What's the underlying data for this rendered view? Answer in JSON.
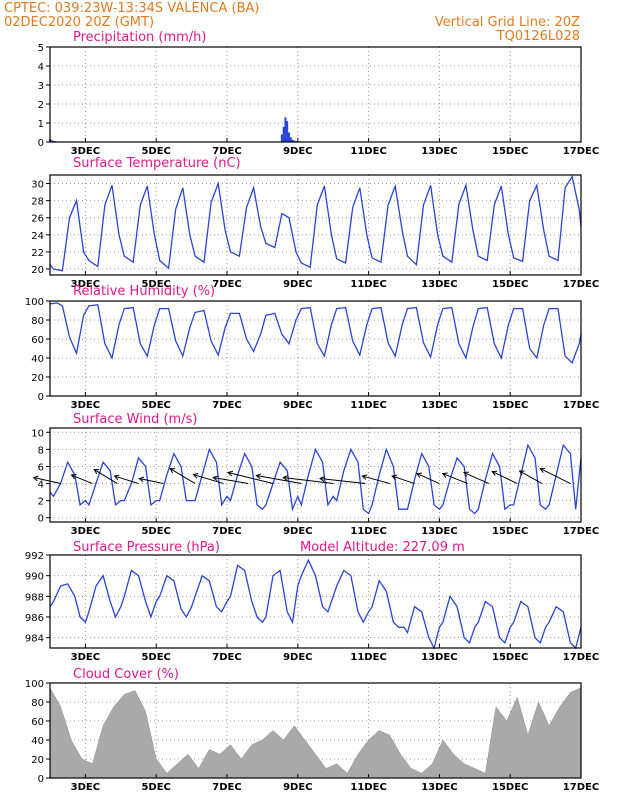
{
  "header": {
    "line1": "CPTEC:   039:23W-13:34S   VALENCA (BA)",
    "line2": "02DEC2020 20Z (GMT)",
    "right1": "Vertical Grid Line: 20Z",
    "right2": "TQ0126L028"
  },
  "x_axis": {
    "days": [
      2,
      17
    ],
    "tick_days": [
      3,
      5,
      7,
      9,
      11,
      13,
      15,
      17
    ],
    "tick_labels": [
      "3DEC",
      "5DEC",
      "7DEC",
      "9DEC",
      "11DEC",
      "13DEC",
      "15DEC",
      "17DEC"
    ]
  },
  "colors": {
    "line": "#2b44d8",
    "cloud": "#a9a9a9",
    "header": "#e07a1f",
    "title": "#e0188a"
  },
  "chart_data": [
    {
      "id": "precip",
      "type": "bar",
      "title": "Precipitation (mm/h)",
      "ylim": [
        0,
        5
      ],
      "yticks": [
        0,
        1,
        2,
        3,
        4,
        5
      ],
      "series": [
        {
          "x": [
            2.0,
            2.05,
            2.1,
            2.15,
            8.55,
            8.6,
            8.65,
            8.7,
            8.75,
            8.8,
            8.85,
            8.9,
            8.95,
            9.0,
            9.05,
            9.1,
            9.2
          ],
          "values": [
            0.15,
            0.1,
            0.05,
            0.05,
            0.4,
            0.8,
            1.3,
            1.1,
            0.5,
            0.25,
            0.12,
            0.08,
            0.05,
            0.05,
            0.03,
            0.03,
            0.02
          ]
        }
      ]
    },
    {
      "id": "temp",
      "type": "line",
      "title": "Surface Temperature (nC)",
      "ylim": [
        19.3,
        31
      ],
      "yticks": [
        20,
        22,
        24,
        26,
        28,
        30
      ],
      "series": [
        {
          "x": [
            2.0,
            2.1,
            2.35,
            2.55,
            2.75,
            2.95,
            3.1,
            3.35,
            3.55,
            3.75,
            3.95,
            4.1,
            4.35,
            4.55,
            4.75,
            4.95,
            5.1,
            5.35,
            5.55,
            5.75,
            5.95,
            6.1,
            6.35,
            6.55,
            6.75,
            6.95,
            7.1,
            7.35,
            7.55,
            7.75,
            7.95,
            8.1,
            8.35,
            8.55,
            8.75,
            8.95,
            9.1,
            9.35,
            9.55,
            9.75,
            9.95,
            10.1,
            10.35,
            10.55,
            10.75,
            10.95,
            11.1,
            11.35,
            11.55,
            11.75,
            11.95,
            12.1,
            12.35,
            12.55,
            12.75,
            12.95,
            13.1,
            13.35,
            13.55,
            13.75,
            13.95,
            14.1,
            14.35,
            14.55,
            14.75,
            14.95,
            15.1,
            15.35,
            15.55,
            15.75,
            15.95,
            16.1,
            16.35,
            16.55,
            16.75,
            16.95,
            17.0
          ],
          "values": [
            20.5,
            20,
            19.8,
            26,
            28,
            22,
            21,
            20.3,
            27.5,
            29.8,
            24,
            21.5,
            20.8,
            27.5,
            29.7,
            24,
            21,
            20.1,
            27,
            29.5,
            24,
            21.5,
            20.8,
            27.8,
            30,
            24.5,
            22,
            21.5,
            27.2,
            29.5,
            25,
            23,
            22.5,
            26.5,
            26,
            22,
            20.7,
            20.2,
            27.5,
            29.7,
            24,
            21.2,
            20.7,
            27.2,
            29.5,
            24,
            21.3,
            20.8,
            27.5,
            29.7,
            24.5,
            21.5,
            20.5,
            27.5,
            29.8,
            24,
            21.5,
            20.8,
            27.6,
            29.8,
            24.5,
            21.5,
            21.0,
            27.5,
            29.7,
            24,
            21.3,
            20.9,
            28,
            29.8,
            24.5,
            21.5,
            21.0,
            29.5,
            30.8,
            27,
            25
          ]
        }
      ]
    },
    {
      "id": "rh",
      "type": "line",
      "title": "Relative Humidity (%)",
      "ylim": [
        0,
        100
      ],
      "yticks": [
        0,
        20,
        40,
        60,
        80,
        100
      ],
      "series": [
        {
          "x": [
            2.0,
            2.2,
            2.35,
            2.55,
            2.75,
            2.95,
            3.1,
            3.35,
            3.55,
            3.75,
            3.95,
            4.1,
            4.35,
            4.55,
            4.75,
            4.95,
            5.1,
            5.35,
            5.55,
            5.75,
            5.95,
            6.1,
            6.35,
            6.55,
            6.75,
            6.95,
            7.1,
            7.35,
            7.55,
            7.75,
            7.95,
            8.1,
            8.35,
            8.55,
            8.75,
            8.95,
            9.1,
            9.35,
            9.55,
            9.75,
            9.95,
            10.1,
            10.35,
            10.55,
            10.75,
            10.95,
            11.1,
            11.35,
            11.55,
            11.75,
            11.95,
            12.1,
            12.35,
            12.55,
            12.75,
            12.95,
            13.1,
            13.35,
            13.55,
            13.75,
            13.95,
            14.1,
            14.35,
            14.55,
            14.75,
            14.95,
            15.1,
            15.35,
            15.55,
            15.75,
            15.95,
            16.1,
            16.35,
            16.55,
            16.75,
            16.95,
            17.0
          ],
          "values": [
            97,
            98,
            95,
            62,
            45,
            85,
            95,
            96,
            55,
            40,
            75,
            92,
            93,
            55,
            42,
            75,
            92,
            92,
            58,
            42,
            72,
            88,
            90,
            58,
            43,
            72,
            87,
            87,
            60,
            47,
            65,
            85,
            87,
            65,
            55,
            80,
            92,
            93,
            55,
            42,
            75,
            92,
            93,
            58,
            43,
            75,
            92,
            93,
            56,
            42,
            75,
            92,
            93,
            56,
            41,
            75,
            92,
            93,
            55,
            40,
            73,
            92,
            93,
            55,
            40,
            75,
            92,
            92,
            50,
            40,
            75,
            92,
            92,
            42,
            35,
            55,
            65
          ]
        }
      ]
    },
    {
      "id": "wind",
      "type": "line",
      "title": "Surface Wind (m/s)",
      "ylim": [
        -0.5,
        10.5
      ],
      "yticks": [
        0,
        2,
        4,
        6,
        8,
        10
      ],
      "series": [
        {
          "x": [
            2.0,
            2.1,
            2.3,
            2.5,
            2.7,
            2.85,
            3.0,
            3.1,
            3.3,
            3.5,
            3.7,
            3.85,
            4.0,
            4.1,
            4.3,
            4.5,
            4.7,
            4.85,
            5.0,
            5.1,
            5.3,
            5.5,
            5.7,
            5.85,
            6.0,
            6.1,
            6.3,
            6.5,
            6.7,
            6.85,
            7.0,
            7.1,
            7.3,
            7.5,
            7.7,
            7.85,
            8.0,
            8.1,
            8.3,
            8.5,
            8.7,
            8.85,
            9.0,
            9.1,
            9.3,
            9.5,
            9.7,
            9.85,
            10.0,
            10.1,
            10.3,
            10.5,
            10.7,
            10.85,
            11.0,
            11.1,
            11.3,
            11.5,
            11.7,
            11.85,
            12.0,
            12.1,
            12.3,
            12.5,
            12.7,
            12.85,
            13.0,
            13.1,
            13.3,
            13.5,
            13.7,
            13.85,
            14.0,
            14.1,
            14.3,
            14.5,
            14.7,
            14.85,
            15.0,
            15.1,
            15.3,
            15.5,
            15.7,
            15.85,
            16.0,
            16.1,
            16.3,
            16.5,
            16.7,
            16.85,
            17.0
          ],
          "values": [
            3,
            2.5,
            4,
            6.5,
            5,
            1.5,
            2,
            1.5,
            4,
            6.5,
            5.5,
            1.5,
            2,
            2,
            4,
            7,
            6,
            1.5,
            2,
            2,
            5,
            7.5,
            6,
            2,
            2,
            2,
            5,
            8,
            6.5,
            1.5,
            2.5,
            2,
            5,
            7.5,
            6,
            1.5,
            1,
            1.5,
            4,
            6.5,
            5.5,
            1,
            2.5,
            1.5,
            5,
            8,
            6.5,
            1.5,
            2.5,
            2,
            5.5,
            8,
            6.5,
            1,
            0.5,
            1.5,
            5,
            8,
            6,
            1,
            1,
            1,
            4.5,
            7.5,
            6,
            1.5,
            1,
            1.5,
            4.5,
            7,
            6,
            1,
            0.5,
            1,
            4.5,
            7.5,
            6,
            1,
            1.5,
            1.5,
            5,
            8.5,
            7,
            1.5,
            1,
            1.5,
            5,
            8.5,
            7.5,
            1,
            7
          ]
        }
      ],
      "wind_vectors": [
        {
          "x": 2.3,
          "u": -5.4,
          "v": 1.2
        },
        {
          "x": 3.2,
          "u": -4.2,
          "v": 1.7
        },
        {
          "x": 3.9,
          "u": -4.6,
          "v": 2.8
        },
        {
          "x": 4.5,
          "u": -4.8,
          "v": 1.5
        },
        {
          "x": 5.2,
          "u": -4.8,
          "v": 1.0
        },
        {
          "x": 6.1,
          "u": -5.0,
          "v": 3.0
        },
        {
          "x": 6.9,
          "u": -6.0,
          "v": 1.8
        },
        {
          "x": 7.6,
          "u": -7.0,
          "v": 1.2
        },
        {
          "x": 8.3,
          "u": -9.0,
          "v": 2.2
        },
        {
          "x": 9.1,
          "u": -9.0,
          "v": 1.6
        },
        {
          "x": 10.0,
          "u": -10.0,
          "v": 1.2
        },
        {
          "x": 10.9,
          "u": -9.0,
          "v": 1.0
        },
        {
          "x": 11.6,
          "u": -5.5,
          "v": 1.5
        },
        {
          "x": 12.3,
          "u": -4.5,
          "v": 1.5
        },
        {
          "x": 13.0,
          "u": -4.5,
          "v": 2.0
        },
        {
          "x": 13.8,
          "u": -5.0,
          "v": 2.0
        },
        {
          "x": 14.4,
          "u": -5.0,
          "v": 2.2
        },
        {
          "x": 15.2,
          "u": -5.0,
          "v": 2.4
        },
        {
          "x": 15.9,
          "u": -4.5,
          "v": 2.5
        },
        {
          "x": 16.7,
          "u": -6.0,
          "v": 3.0
        }
      ]
    },
    {
      "id": "pres",
      "type": "line",
      "title": "Surface Pressure (hPa)",
      "annotation": "Model Altitude: 227.09 m",
      "ylim": [
        983,
        992
      ],
      "yticks": [
        984,
        986,
        988,
        990,
        992
      ],
      "series": [
        {
          "x": [
            2.0,
            2.1,
            2.3,
            2.5,
            2.7,
            2.85,
            3.0,
            3.1,
            3.3,
            3.5,
            3.7,
            3.85,
            4.0,
            4.1,
            4.3,
            4.5,
            4.7,
            4.85,
            5.0,
            5.1,
            5.3,
            5.5,
            5.7,
            5.85,
            6.0,
            6.1,
            6.3,
            6.5,
            6.7,
            6.85,
            7.0,
            7.1,
            7.3,
            7.5,
            7.7,
            7.85,
            8.0,
            8.1,
            8.3,
            8.5,
            8.7,
            8.85,
            9.0,
            9.1,
            9.3,
            9.5,
            9.7,
            9.85,
            10.0,
            10.1,
            10.3,
            10.5,
            10.7,
            10.85,
            11.0,
            11.1,
            11.3,
            11.5,
            11.7,
            11.85,
            12.0,
            12.1,
            12.3,
            12.5,
            12.7,
            12.85,
            13.0,
            13.1,
            13.3,
            13.5,
            13.7,
            13.85,
            14.0,
            14.1,
            14.3,
            14.5,
            14.7,
            14.85,
            15.0,
            15.1,
            15.3,
            15.5,
            15.7,
            15.85,
            16.0,
            16.1,
            16.3,
            16.5,
            16.7,
            16.85,
            17.0
          ],
          "values": [
            987,
            987.5,
            989,
            989.2,
            988,
            986,
            985.5,
            986.5,
            989,
            990,
            987.5,
            986,
            987,
            988,
            990.5,
            990,
            987.5,
            986,
            987.5,
            988,
            990,
            989.5,
            986.8,
            986,
            987,
            988,
            990,
            989.5,
            987,
            986.5,
            987.5,
            988,
            991,
            990.5,
            987.5,
            986,
            985.5,
            986,
            990,
            990.5,
            986.5,
            985.5,
            989,
            990,
            991.5,
            990,
            987,
            986.5,
            988,
            989,
            990.5,
            990,
            986.5,
            985.5,
            986.5,
            987,
            989.5,
            988.5,
            985.5,
            985,
            985,
            984.5,
            987,
            986.5,
            984,
            983,
            985,
            985.5,
            988,
            987,
            984,
            983.5,
            985,
            985.5,
            987.5,
            987,
            984,
            983.5,
            985,
            985.5,
            987.5,
            987,
            984,
            983.5,
            985,
            985.5,
            987,
            986.5,
            983.5,
            983,
            985
          ]
        }
      ]
    },
    {
      "id": "cloud",
      "type": "area",
      "title": "Cloud Cover (%)",
      "ylim": [
        0,
        100
      ],
      "yticks": [
        0,
        20,
        40,
        60,
        80,
        100
      ],
      "series": [
        {
          "x": [
            2.0,
            2.3,
            2.6,
            2.9,
            3.2,
            3.5,
            3.8,
            4.1,
            4.4,
            4.7,
            5.0,
            5.3,
            5.6,
            5.9,
            6.2,
            6.5,
            6.8,
            7.1,
            7.4,
            7.7,
            8.0,
            8.3,
            8.6,
            8.9,
            9.2,
            9.5,
            9.8,
            10.1,
            10.4,
            10.7,
            11.0,
            11.3,
            11.6,
            11.9,
            12.2,
            12.5,
            12.8,
            13.1,
            13.4,
            13.7,
            14.0,
            14.3,
            14.6,
            14.9,
            15.2,
            15.5,
            15.8,
            16.1,
            16.4,
            16.7,
            17.0
          ],
          "values": [
            95,
            75,
            40,
            20,
            15,
            55,
            75,
            88,
            92,
            70,
            20,
            5,
            15,
            25,
            10,
            30,
            25,
            35,
            20,
            35,
            40,
            50,
            40,
            55,
            40,
            25,
            10,
            15,
            5,
            25,
            40,
            50,
            45,
            25,
            10,
            5,
            15,
            40,
            25,
            15,
            10,
            5,
            75,
            60,
            85,
            45,
            80,
            55,
            75,
            90,
            95
          ]
        }
      ]
    }
  ]
}
